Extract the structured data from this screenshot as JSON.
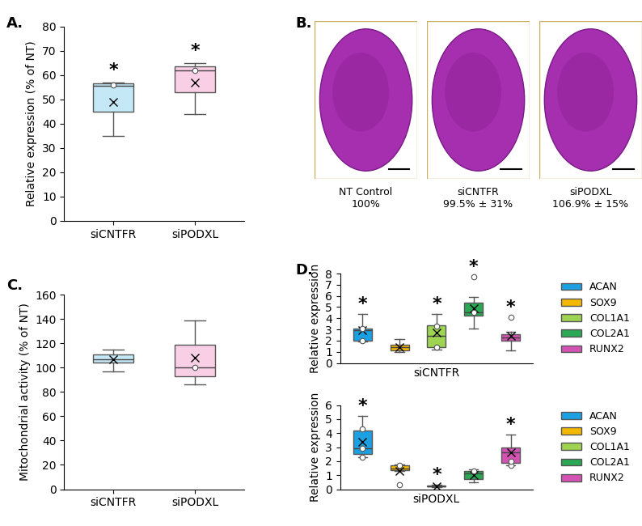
{
  "chart_data": [
    {
      "type": "box",
      "title": "A.",
      "y_label": "Relative expression (% of NT)",
      "categories": [
        "siCNTFR",
        "siPODXL"
      ],
      "colors": [
        "#c5e8f7",
        "#f9cfe6"
      ],
      "ylim": [
        0,
        80
      ],
      "yticks": [
        0,
        10,
        20,
        30,
        40,
        50,
        60,
        70,
        80
      ],
      "boxes": [
        {
          "min": 35,
          "q1": 45,
          "median": 55.5,
          "q3": 56.5,
          "max": 57,
          "mean": 49,
          "points": [
            56
          ],
          "annotation": "*"
        },
        {
          "min": 44,
          "q1": 53,
          "median": 62,
          "q3": 63.5,
          "max": 65,
          "mean": 57,
          "points": [
            62
          ],
          "annotation": "*"
        }
      ]
    },
    {
      "type": "box",
      "title": "C.",
      "y_label": "Mitochondrial activity (% of NT)",
      "categories": [
        "siCNTFR",
        "siPODXL"
      ],
      "colors": [
        "#c5e8f7",
        "#f9cfe6"
      ],
      "ylim": [
        0,
        160
      ],
      "yticks": [
        0,
        20,
        40,
        60,
        80,
        100,
        120,
        140,
        160
      ],
      "boxes": [
        {
          "min": 97,
          "q1": 104,
          "median": 107,
          "q3": 111,
          "max": 115,
          "mean": 107,
          "points": []
        },
        {
          "min": 86,
          "q1": 93,
          "median": 100,
          "q3": 119,
          "max": 139,
          "mean": 108,
          "points": [
            100
          ]
        }
      ]
    },
    {
      "type": "box",
      "title": "D.",
      "y_label": "Relative expression",
      "x_label": "siCNTFR",
      "categories": [
        "ACAN",
        "SOX9",
        "COL1A1",
        "COL2A1",
        "RUNX2"
      ],
      "colors": [
        "#1ba1e2",
        "#f5b800",
        "#9fd452",
        "#2aa854",
        "#d552b5"
      ],
      "ylim": [
        0,
        8
      ],
      "yticks": [
        0,
        1,
        2,
        3,
        4,
        5,
        6,
        7,
        8
      ],
      "tick_labels": "y",
      "legend": "center left",
      "boxes": [
        {
          "min": 1.9,
          "q1": 2.0,
          "median": 2.9,
          "q3": 3.1,
          "max": 4.4,
          "mean": 2.9,
          "points": [
            2.0,
            3.1
          ],
          "annotation": "*"
        },
        {
          "min": 1.0,
          "q1": 1.1,
          "median": 1.4,
          "q3": 1.6,
          "max": 2.1,
          "mean": 1.4,
          "points": []
        },
        {
          "min": 1.2,
          "q1": 1.4,
          "median": 2.4,
          "q3": 3.4,
          "max": 4.4,
          "mean": 2.7,
          "points": [
            1.4,
            3.3
          ],
          "annotation": "*"
        },
        {
          "min": 3.1,
          "q1": 4.2,
          "median": 4.5,
          "q3": 5.4,
          "max": 5.9,
          "mean": 4.9,
          "points": [
            4.5,
            7.7
          ],
          "annotation": "*"
        },
        {
          "min": 1.1,
          "q1": 2.0,
          "median": 2.3,
          "q3": 2.6,
          "max": 2.8,
          "mean": 2.4,
          "points": [
            4.1
          ],
          "annotation": "*"
        }
      ]
    },
    {
      "type": "box",
      "y_label": "Relative expression",
      "x_label": "siPODXL",
      "categories": [
        "ACAN",
        "SOX9",
        "COL1A1",
        "COL2A1",
        "RUNX2"
      ],
      "colors": [
        "#1ba1e2",
        "#f5b800",
        "#9fd452",
        "#2aa854",
        "#d552b5"
      ],
      "ylim": [
        0,
        6
      ],
      "yticks": [
        0,
        1,
        2,
        3,
        4,
        5,
        6
      ],
      "tick_labels": "y",
      "legend": "center left",
      "boxes": [
        {
          "min": 2.3,
          "q1": 2.5,
          "median": 2.9,
          "q3": 4.2,
          "max": 5.2,
          "mean": 3.4,
          "points": [
            2.3,
            2.9,
            4.3
          ],
          "annotation": "*"
        },
        {
          "min": 1.3,
          "q1": 1.35,
          "median": 1.5,
          "q3": 1.7,
          "max": 1.75,
          "mean": 1.3,
          "points": [
            1.7,
            0.3
          ]
        },
        {
          "min": 0.15,
          "q1": 0.18,
          "median": 0.22,
          "q3": 0.28,
          "max": 0.3,
          "mean": 0.22,
          "points": [],
          "annotation": "*"
        },
        {
          "min": 0.5,
          "q1": 0.75,
          "median": 1.1,
          "q3": 1.3,
          "max": 1.4,
          "mean": 1.0,
          "points": [
            1.3
          ]
        },
        {
          "min": 1.7,
          "q1": 1.9,
          "median": 2.6,
          "q3": 3.0,
          "max": 3.9,
          "mean": 2.6,
          "points": [
            1.7,
            2.0
          ],
          "annotation": "*"
        }
      ]
    }
  ],
  "images_panel": {
    "title": "B.",
    "images": [
      {
        "label": "NT Control",
        "value": "100%"
      },
      {
        "label": "siCNTFR",
        "value": "99.5% ± 31%"
      },
      {
        "label": "siPODXL",
        "value": "106.9% ± 15%"
      }
    ]
  }
}
